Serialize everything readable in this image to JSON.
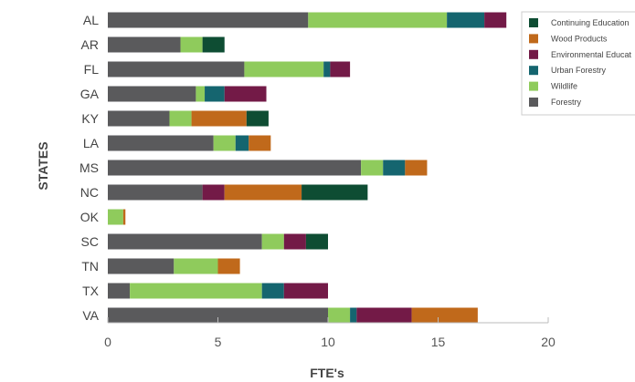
{
  "chart_data": {
    "type": "bar",
    "orientation": "horizontal",
    "stacked": true,
    "title": "",
    "xlabel": "FTE's",
    "ylabel": "STATES",
    "xlim": [
      0,
      20
    ],
    "xticks": [
      0,
      5,
      10,
      15,
      20
    ],
    "grid": false,
    "legend_position": "top-right",
    "categories": [
      "AL",
      "AR",
      "FL",
      "GA",
      "KY",
      "LA",
      "MS",
      "NC",
      "OK",
      "SC",
      "TN",
      "TX",
      "VA"
    ],
    "series": [
      {
        "name": "Forestry",
        "color": "#5a5a5c",
        "values": [
          9.1,
          3.3,
          6.2,
          4.0,
          2.8,
          4.8,
          11.5,
          4.3,
          0.0,
          7.0,
          3.0,
          1.0,
          10.0
        ]
      },
      {
        "name": "Wildlife",
        "color": "#8fcb5c",
        "values": [
          6.3,
          1.0,
          3.6,
          0.4,
          1.0,
          1.0,
          1.0,
          0.0,
          0.7,
          1.0,
          2.0,
          6.0,
          1.0
        ]
      },
      {
        "name": "Urban Forestry",
        "color": "#15656f",
        "values": [
          1.7,
          0.0,
          0.3,
          0.9,
          0.0,
          0.6,
          1.0,
          0.0,
          0.0,
          0.0,
          0.0,
          1.0,
          0.3
        ]
      },
      {
        "name": "Environmental Education",
        "color": "#731a47",
        "values": [
          1.0,
          0.0,
          0.9,
          1.9,
          0.0,
          0.0,
          0.0,
          1.0,
          0.0,
          1.0,
          0.0,
          2.0,
          2.5
        ]
      },
      {
        "name": "Wood Products",
        "color": "#c0691b",
        "values": [
          0.0,
          0.0,
          0.0,
          0.0,
          2.5,
          1.0,
          1.0,
          3.5,
          0.1,
          0.0,
          1.0,
          0.0,
          3.0
        ]
      },
      {
        "name": "Continuing Education",
        "color": "#0e4d33",
        "values": [
          0.0,
          1.0,
          0.0,
          0.0,
          1.0,
          0.0,
          0.0,
          3.0,
          0.0,
          1.0,
          0.0,
          0.0,
          0.0
        ]
      }
    ],
    "legend_entries": [
      "Continuing Education",
      "Wood Products",
      "Environmental Educat",
      "Urban Forestry",
      "Wildlife",
      "Forestry"
    ]
  }
}
